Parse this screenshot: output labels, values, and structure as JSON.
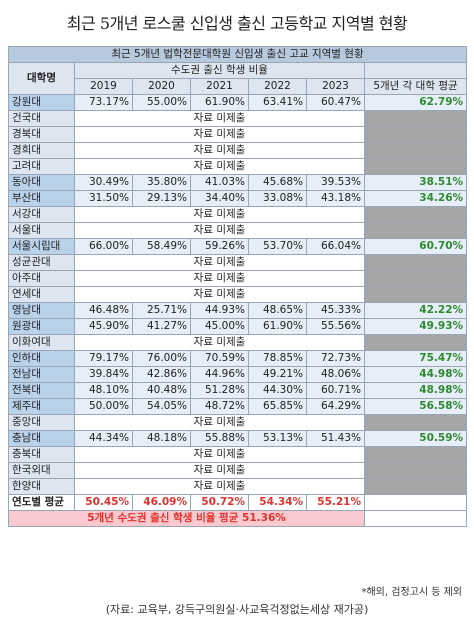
{
  "title": "최근 5개년 로스쿨 신입생 출신 고등학교 지역별 현황",
  "table": {
    "caption": "최근 5개년 법학전문대학원 신입생 출신 고교 지역별 현황",
    "school_header": "대학명",
    "group_header": "수도권 출신 학생 비율",
    "years": [
      "2019",
      "2020",
      "2021",
      "2022",
      "2023"
    ],
    "avg_header": "5개년 각 대학 평균",
    "na_text": "자료 미제출",
    "rows": [
      {
        "name": "강원대",
        "values": [
          "73.17%",
          "55.00%",
          "61.90%",
          "63.41%",
          "60.47%"
        ],
        "avg": "62.79%"
      },
      {
        "name": "건국대",
        "na": true
      },
      {
        "name": "경북대",
        "na": true
      },
      {
        "name": "경희대",
        "na": true
      },
      {
        "name": "고려대",
        "na": true
      },
      {
        "name": "동아대",
        "values": [
          "30.49%",
          "35.80%",
          "41.03%",
          "45.68%",
          "39.53%"
        ],
        "avg": "38.51%"
      },
      {
        "name": "부산대",
        "values": [
          "31.50%",
          "29.13%",
          "34.40%",
          "33.08%",
          "43.18%"
        ],
        "avg": "34.26%"
      },
      {
        "name": "서강대",
        "na": true
      },
      {
        "name": "서울대",
        "na": true
      },
      {
        "name": "서울시립대",
        "values": [
          "66.00%",
          "58.49%",
          "59.26%",
          "53.70%",
          "66.04%"
        ],
        "avg": "60.70%"
      },
      {
        "name": "성균관대",
        "na": true
      },
      {
        "name": "아주대",
        "na": true
      },
      {
        "name": "연세대",
        "na": true
      },
      {
        "name": "영남대",
        "values": [
          "46.48%",
          "25.71%",
          "44.93%",
          "48.65%",
          "45.33%"
        ],
        "avg": "42.22%"
      },
      {
        "name": "원광대",
        "values": [
          "45.90%",
          "41.27%",
          "45.00%",
          "61.90%",
          "55.56%"
        ],
        "avg": "49.93%"
      },
      {
        "name": "이화여대",
        "na": true
      },
      {
        "name": "인하대",
        "values": [
          "79.17%",
          "76.00%",
          "70.59%",
          "78.85%",
          "72.73%"
        ],
        "avg": "75.47%"
      },
      {
        "name": "전남대",
        "values": [
          "39.84%",
          "42.86%",
          "44.96%",
          "49.21%",
          "48.06%"
        ],
        "avg": "44.98%"
      },
      {
        "name": "전북대",
        "values": [
          "48.10%",
          "40.48%",
          "51.28%",
          "44.30%",
          "60.71%"
        ],
        "avg": "48.98%"
      },
      {
        "name": "제주대",
        "values": [
          "50.00%",
          "54.05%",
          "48.72%",
          "65.85%",
          "64.29%"
        ],
        "avg": "56.58%"
      },
      {
        "name": "중앙대",
        "na": true
      },
      {
        "name": "충남대",
        "values": [
          "44.34%",
          "48.18%",
          "55.88%",
          "53.13%",
          "51.43%"
        ],
        "avg": "50.59%"
      },
      {
        "name": "충북대",
        "na": true
      },
      {
        "name": "한국외대",
        "na": true
      },
      {
        "name": "한양대",
        "na": true
      }
    ],
    "total_label": "연도별 평균",
    "totals": [
      "50.45%",
      "46.09%",
      "50.72%",
      "54.34%",
      "55.21%"
    ],
    "summary": "5개년 수도권 출신 학생 비율 평균 51.36%"
  },
  "note": "*해외, 검정고시 등 제외",
  "source": "(자료: 교육부, 강득구의원실·사교육걱정없는세상 재가공)"
}
